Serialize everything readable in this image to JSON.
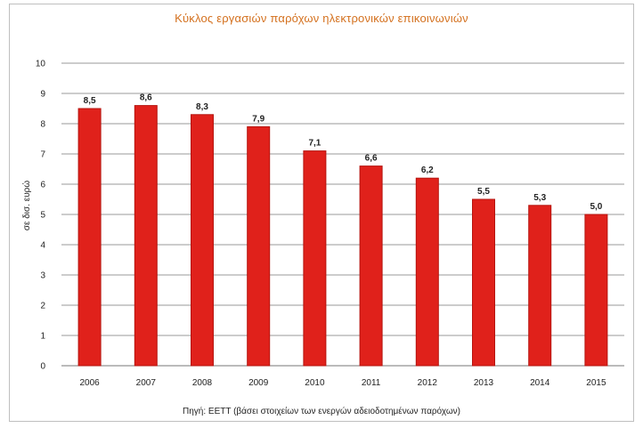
{
  "chart_data": {
    "type": "bar",
    "title": "Κύκλος εργασιών παρόχων ηλεκτρονικών επικοινωνιών",
    "ylabel": "σε δισ. ευρώ",
    "xlabel": "",
    "categories": [
      "2006",
      "2007",
      "2008",
      "2009",
      "2010",
      "2011",
      "2012",
      "2013",
      "2014",
      "2015"
    ],
    "values": [
      8.5,
      8.6,
      8.3,
      7.9,
      7.1,
      6.6,
      6.2,
      5.5,
      5.3,
      5.0
    ],
    "value_labels": [
      "8,5",
      "8,6",
      "8,3",
      "7,9",
      "7,1",
      "6,6",
      "6,2",
      "5,5",
      "5,3",
      "5,0"
    ],
    "yticks": [
      "0",
      "1",
      "2",
      "3",
      "4",
      "5",
      "6",
      "7",
      "8",
      "9",
      "10"
    ],
    "ylim": [
      0,
      10
    ],
    "grid": true,
    "bar_color": "#e0211b",
    "bar_edge_color": "#b5140f",
    "source": "Πηγή: ΕΕΤΤ (βάσει στοιχείων των ενεργών αδειοδοτημένων παρόχων)"
  }
}
